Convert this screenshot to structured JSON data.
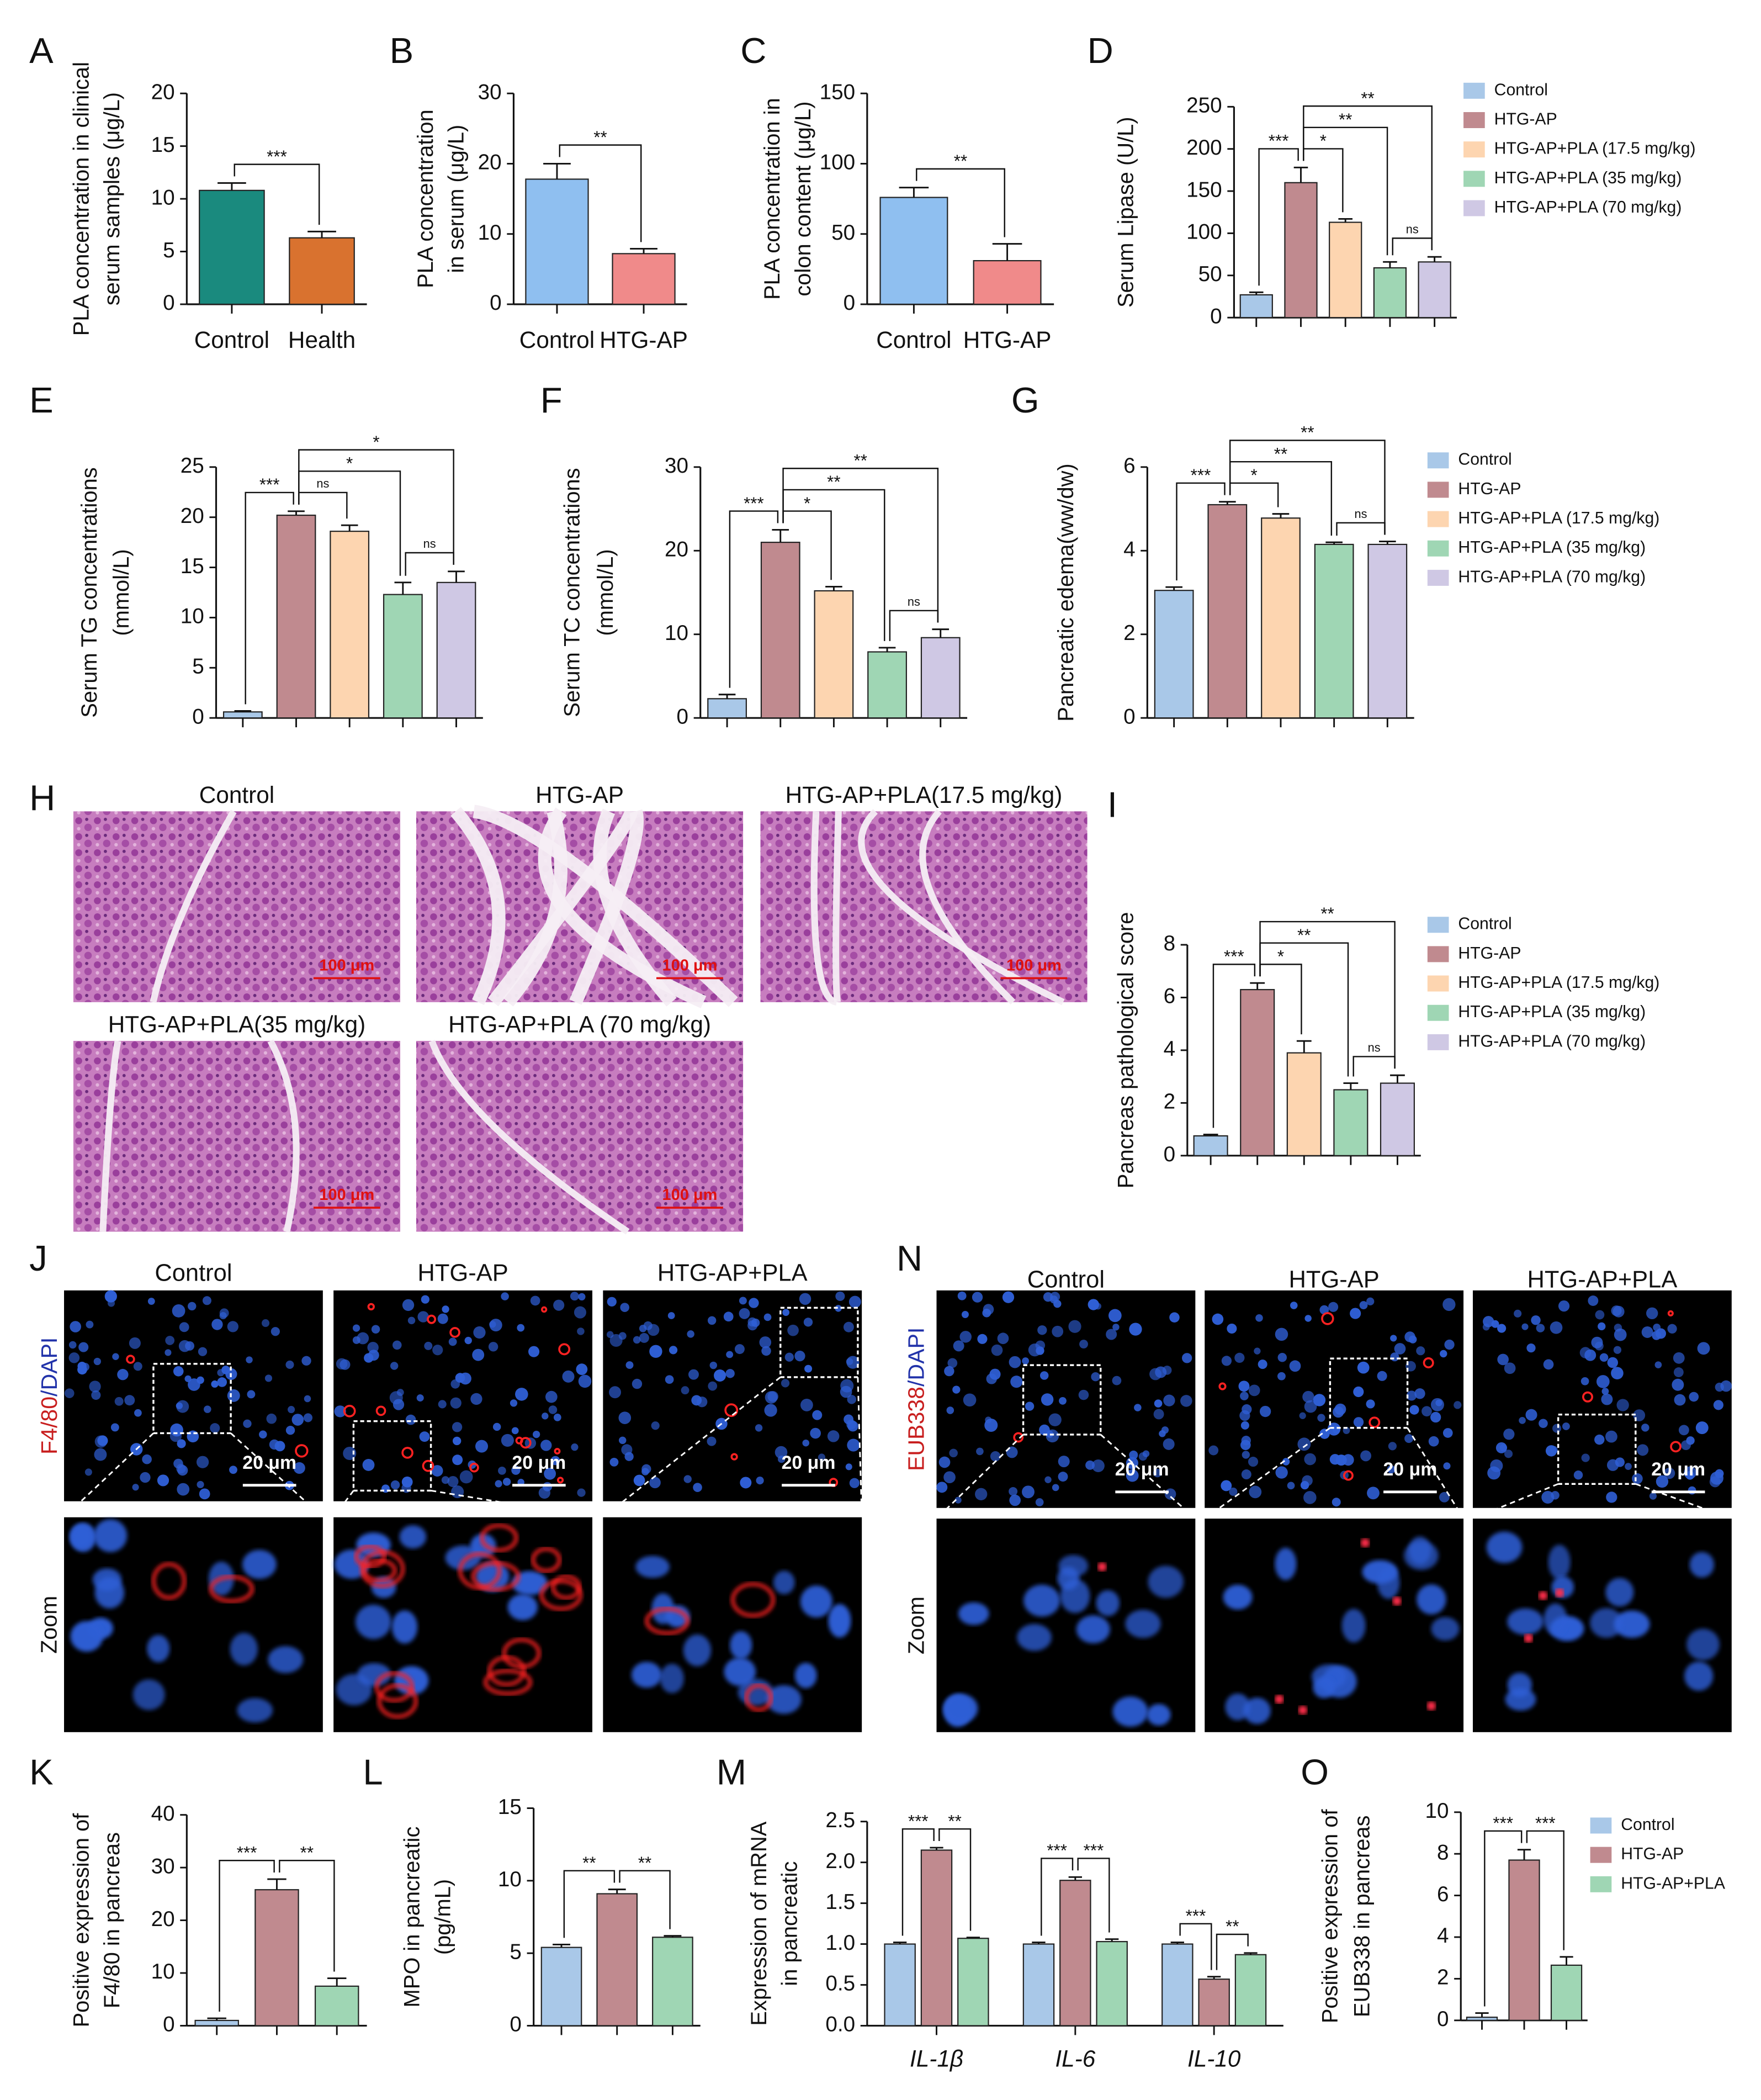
{
  "chart_data": [
    {
      "type": "bar",
      "letter": "A",
      "ylabel": [
        "PLA concentration in clinical",
        "serum samples  (μg/L)"
      ],
      "categories": [
        "Control",
        "Health"
      ],
      "values": [
        10.8,
        6.3
      ],
      "errors": [
        0.7,
        0.6
      ],
      "colors": [
        "#1a8a7e",
        "#d9722f"
      ],
      "ylim": [
        0,
        20
      ],
      "yticks": [
        0,
        5,
        10,
        15,
        20
      ],
      "comparisons": [
        {
          "pair": [
            0,
            1
          ],
          "label": "***"
        }
      ]
    },
    {
      "type": "bar",
      "letter": "B",
      "ylabel": [
        "PLA concentration",
        "in serum (μg/L)"
      ],
      "categories": [
        "Control",
        "HTG-AP"
      ],
      "values": [
        17.8,
        7.2
      ],
      "errors": [
        2.2,
        0.7
      ],
      "colors": [
        "#8fbff0",
        "#f08a8a"
      ],
      "ylim": [
        0,
        30
      ],
      "yticks": [
        0,
        10,
        20,
        30
      ],
      "comparisons": [
        {
          "pair": [
            0,
            1
          ],
          "label": "**"
        }
      ]
    },
    {
      "type": "bar",
      "letter": "C",
      "ylabel": [
        "PLA concentration in",
        "colon content (μg/L)"
      ],
      "categories": [
        "Control",
        "HTG-AP"
      ],
      "values": [
        76,
        31
      ],
      "errors": [
        7,
        12
      ],
      "colors": [
        "#8fbff0",
        "#f08a8a"
      ],
      "ylim": [
        0,
        150
      ],
      "yticks": [
        0,
        50,
        100,
        150
      ],
      "comparisons": [
        {
          "pair": [
            0,
            1
          ],
          "label": "**"
        }
      ]
    },
    {
      "type": "bar",
      "letter": "D",
      "ylabel": [
        "Serum Lipase (U/L)"
      ],
      "categories": [
        null,
        null,
        null,
        null,
        null
      ],
      "values": [
        27,
        160,
        113,
        59,
        66
      ],
      "errors": [
        3,
        18,
        4,
        7,
        6
      ],
      "colors": [
        "#a9c8e8",
        "#c08a8f",
        "#fdd5b0",
        "#9fd6b4",
        "#cfc8e4"
      ],
      "ylim": [
        0,
        250
      ],
      "yticks": [
        0,
        50,
        100,
        150,
        200,
        250
      ],
      "comparisons": [
        {
          "pair": [
            0,
            1
          ],
          "label": "***"
        },
        {
          "pair": [
            1,
            2
          ],
          "label": "*"
        },
        {
          "pair": [
            1,
            3
          ],
          "label": "**"
        },
        {
          "pair": [
            3,
            4
          ],
          "label": "ns"
        },
        {
          "pair": [
            1,
            4
          ],
          "label": "**"
        }
      ],
      "legend": [
        "Control",
        "HTG-AP",
        "HTG-AP+PLA (17.5 mg/kg)",
        "HTG-AP+PLA (35 mg/kg)",
        "HTG-AP+PLA (70 mg/kg)"
      ]
    },
    {
      "type": "bar",
      "letter": "E",
      "ylabel": [
        "Serum TG concentrations",
        "(mmol/L)"
      ],
      "categories": [
        null,
        null,
        null,
        null,
        null
      ],
      "values": [
        0.6,
        20.2,
        18.6,
        12.3,
        13.5
      ],
      "errors": [
        0.1,
        0.4,
        0.6,
        1.2,
        1.1
      ],
      "colors": [
        "#a9c8e8",
        "#c08a8f",
        "#fdd5b0",
        "#9fd6b4",
        "#cfc8e4"
      ],
      "ylim": [
        0,
        25
      ],
      "yticks": [
        0,
        5,
        10,
        15,
        20,
        25
      ],
      "comparisons": [
        {
          "pair": [
            0,
            1
          ],
          "label": "***"
        },
        {
          "pair": [
            1,
            2
          ],
          "label": "ns"
        },
        {
          "pair": [
            1,
            3
          ],
          "label": "*"
        },
        {
          "pair": [
            3,
            4
          ],
          "label": "ns"
        },
        {
          "pair": [
            1,
            4
          ],
          "label": "*"
        }
      ]
    },
    {
      "type": "bar",
      "letter": "F",
      "ylabel": [
        "Serum TC concentrations",
        "(mmol/L)"
      ],
      "categories": [
        null,
        null,
        null,
        null,
        null
      ],
      "values": [
        2.3,
        21,
        15.2,
        7.9,
        9.6
      ],
      "errors": [
        0.5,
        1.5,
        0.5,
        0.5,
        1
      ],
      "colors": [
        "#a9c8e8",
        "#c08a8f",
        "#fdd5b0",
        "#9fd6b4",
        "#cfc8e4"
      ],
      "ylim": [
        0,
        30
      ],
      "yticks": [
        0,
        10,
        20,
        30
      ],
      "comparisons": [
        {
          "pair": [
            0,
            1
          ],
          "label": "***"
        },
        {
          "pair": [
            1,
            2
          ],
          "label": "*"
        },
        {
          "pair": [
            1,
            3
          ],
          "label": "**"
        },
        {
          "pair": [
            3,
            4
          ],
          "label": "ns"
        },
        {
          "pair": [
            1,
            4
          ],
          "label": "**"
        }
      ]
    },
    {
      "type": "bar",
      "letter": "G",
      "ylabel": [
        "Pancreatic edema(ww/dw)"
      ],
      "categories": [
        null,
        null,
        null,
        null,
        null
      ],
      "values": [
        3.05,
        5.1,
        4.78,
        4.15,
        4.15
      ],
      "errors": [
        0.08,
        0.07,
        0.1,
        0.05,
        0.07
      ],
      "colors": [
        "#a9c8e8",
        "#c08a8f",
        "#fdd5b0",
        "#9fd6b4",
        "#cfc8e4"
      ],
      "ylim": [
        0,
        6
      ],
      "yticks": [
        0,
        2,
        4,
        6
      ],
      "comparisons": [
        {
          "pair": [
            0,
            1
          ],
          "label": "***"
        },
        {
          "pair": [
            1,
            2
          ],
          "label": "*"
        },
        {
          "pair": [
            1,
            3
          ],
          "label": "**"
        },
        {
          "pair": [
            3,
            4
          ],
          "label": "ns"
        },
        {
          "pair": [
            1,
            4
          ],
          "label": "**"
        }
      ],
      "legend": [
        "Control",
        "HTG-AP",
        "HTG-AP+PLA (17.5 mg/kg)",
        "HTG-AP+PLA (35 mg/kg)",
        "HTG-AP+PLA (70 mg/kg)"
      ]
    },
    {
      "type": "bar",
      "letter": "I",
      "ylabel": [
        "Pancreas pathological score"
      ],
      "categories": [
        null,
        null,
        null,
        null,
        null
      ],
      "values": [
        0.75,
        6.3,
        3.9,
        2.5,
        2.75
      ],
      "errors": [
        0.05,
        0.25,
        0.45,
        0.25,
        0.3
      ],
      "colors": [
        "#a9c8e8",
        "#c08a8f",
        "#fdd5b0",
        "#9fd6b4",
        "#cfc8e4"
      ],
      "ylim": [
        0,
        8
      ],
      "yticks": [
        0,
        2,
        4,
        6,
        8
      ],
      "comparisons": [
        {
          "pair": [
            0,
            1
          ],
          "label": "***"
        },
        {
          "pair": [
            1,
            2
          ],
          "label": "*"
        },
        {
          "pair": [
            1,
            3
          ],
          "label": "**"
        },
        {
          "pair": [
            3,
            4
          ],
          "label": "ns"
        },
        {
          "pair": [
            1,
            4
          ],
          "label": "**"
        }
      ],
      "legend": [
        "Control",
        "HTG-AP",
        "HTG-AP+PLA (17.5 mg/kg)",
        "HTG-AP+PLA (35 mg/kg)",
        "HTG-AP+PLA (70 mg/kg)"
      ]
    },
    {
      "type": "bar",
      "letter": "K",
      "ylabel": [
        "Positive expression of",
        "F4/80 in pancreas"
      ],
      "categories": [
        null,
        null,
        null
      ],
      "values": [
        1,
        25.8,
        7.5
      ],
      "errors": [
        0.4,
        2,
        1.5
      ],
      "colors": [
        "#a9c8e8",
        "#c08a8f",
        "#9fd6b4"
      ],
      "ylim": [
        0,
        40
      ],
      "yticks": [
        0,
        10,
        20,
        30,
        40
      ],
      "comparisons": [
        {
          "pair": [
            0,
            1
          ],
          "label": "***"
        },
        {
          "pair": [
            1,
            2
          ],
          "label": "**"
        }
      ]
    },
    {
      "type": "bar",
      "letter": "L",
      "ylabel": [
        "MPO in pancreatic",
        "(pg/mL)"
      ],
      "categories": [
        null,
        null,
        null
      ],
      "values": [
        5.4,
        9.1,
        6.1
      ],
      "errors": [
        0.2,
        0.3,
        0.1
      ],
      "colors": [
        "#a9c8e8",
        "#c08a8f",
        "#9fd6b4"
      ],
      "ylim": [
        0,
        15
      ],
      "yticks": [
        0,
        5,
        10,
        15
      ],
      "comparisons": [
        {
          "pair": [
            0,
            1
          ],
          "label": "**"
        },
        {
          "pair": [
            1,
            2
          ],
          "label": "**"
        }
      ]
    },
    {
      "type": "grouped_bar",
      "letter": "M",
      "ylabel": [
        "Expression of mRNA",
        "in pancreatic"
      ],
      "categories": [
        "IL-1β",
        "IL-6",
        "IL-10"
      ],
      "series": [
        {
          "color": "#a9c8e8",
          "values": [
            1.0,
            1.0,
            1.0
          ],
          "errors": [
            0.02,
            0.02,
            0.02
          ]
        },
        {
          "color": "#c08a8f",
          "values": [
            2.15,
            1.78,
            0.57
          ],
          "errors": [
            0.03,
            0.04,
            0.03
          ]
        },
        {
          "color": "#9fd6b4",
          "values": [
            1.07,
            1.03,
            0.87
          ],
          "errors": [
            0.01,
            0.03,
            0.02
          ]
        }
      ],
      "ylim": [
        0,
        2.5
      ],
      "yticks": [
        {
          "value": 0,
          "label": "0.0"
        },
        {
          "value": 0.5,
          "label": "0.5"
        },
        {
          "value": 1,
          "label": "1.0"
        },
        {
          "value": 1.5,
          "label": "1.5"
        },
        {
          "value": 2,
          "label": "2.0"
        },
        {
          "value": 2.5,
          "label": "2.5"
        }
      ],
      "comparisons": [
        {
          "category": 0,
          "pair": [
            0,
            1
          ],
          "label": "***"
        },
        {
          "category": 0,
          "pair": [
            1,
            2
          ],
          "label": "**"
        },
        {
          "category": 1,
          "pair": [
            0,
            1
          ],
          "label": "***"
        },
        {
          "category": 1,
          "pair": [
            1,
            2
          ],
          "label": "***"
        },
        {
          "category": 2,
          "pair": [
            0,
            1
          ],
          "label": "***"
        },
        {
          "category": 2,
          "pair": [
            1,
            2
          ],
          "label": "**"
        }
      ]
    },
    {
      "type": "bar",
      "letter": "O",
      "ylabel": [
        "Positive expression of",
        "EUB338 in pancreas"
      ],
      "categories": [
        null,
        null,
        null
      ],
      "values": [
        0.15,
        7.7,
        2.65
      ],
      "errors": [
        0.2,
        0.5,
        0.4
      ],
      "colors": [
        "#a9c8e8",
        "#c08a8f",
        "#9fd6b4"
      ],
      "ylim": [
        0,
        10
      ],
      "yticks": [
        0,
        2,
        4,
        6,
        8,
        10
      ],
      "comparisons": [
        {
          "pair": [
            0,
            1
          ],
          "label": "***"
        },
        {
          "pair": [
            1,
            2
          ],
          "label": "***"
        }
      ],
      "legend": [
        "Control",
        "HTG-AP",
        "HTG-AP+PLA"
      ]
    }
  ],
  "histology": {
    "letter": "H",
    "titles": [
      "Control",
      "HTG-AP",
      "HTG-AP+PLA(17.5 mg/kg)",
      "HTG-AP+PLA(35 mg/kg)",
      "HTG-AP+PLA (70 mg/kg)"
    ],
    "scale": "100 μm"
  },
  "fluorescence": [
    {
      "letter": "J",
      "stain": "F4/80",
      "counterstain": "/DAPI",
      "titles": [
        "Control",
        "HTG-AP",
        "HTG-AP+PLA"
      ],
      "scale": "20 μm",
      "zoom": "Zoom"
    },
    {
      "letter": "N",
      "stain": "EUB338",
      "counterstain": "/DAPI",
      "titles": [
        "Control",
        "HTG-AP",
        "HTG-AP+PLA"
      ],
      "scale": "20 μm",
      "zoom": "Zoom"
    }
  ]
}
